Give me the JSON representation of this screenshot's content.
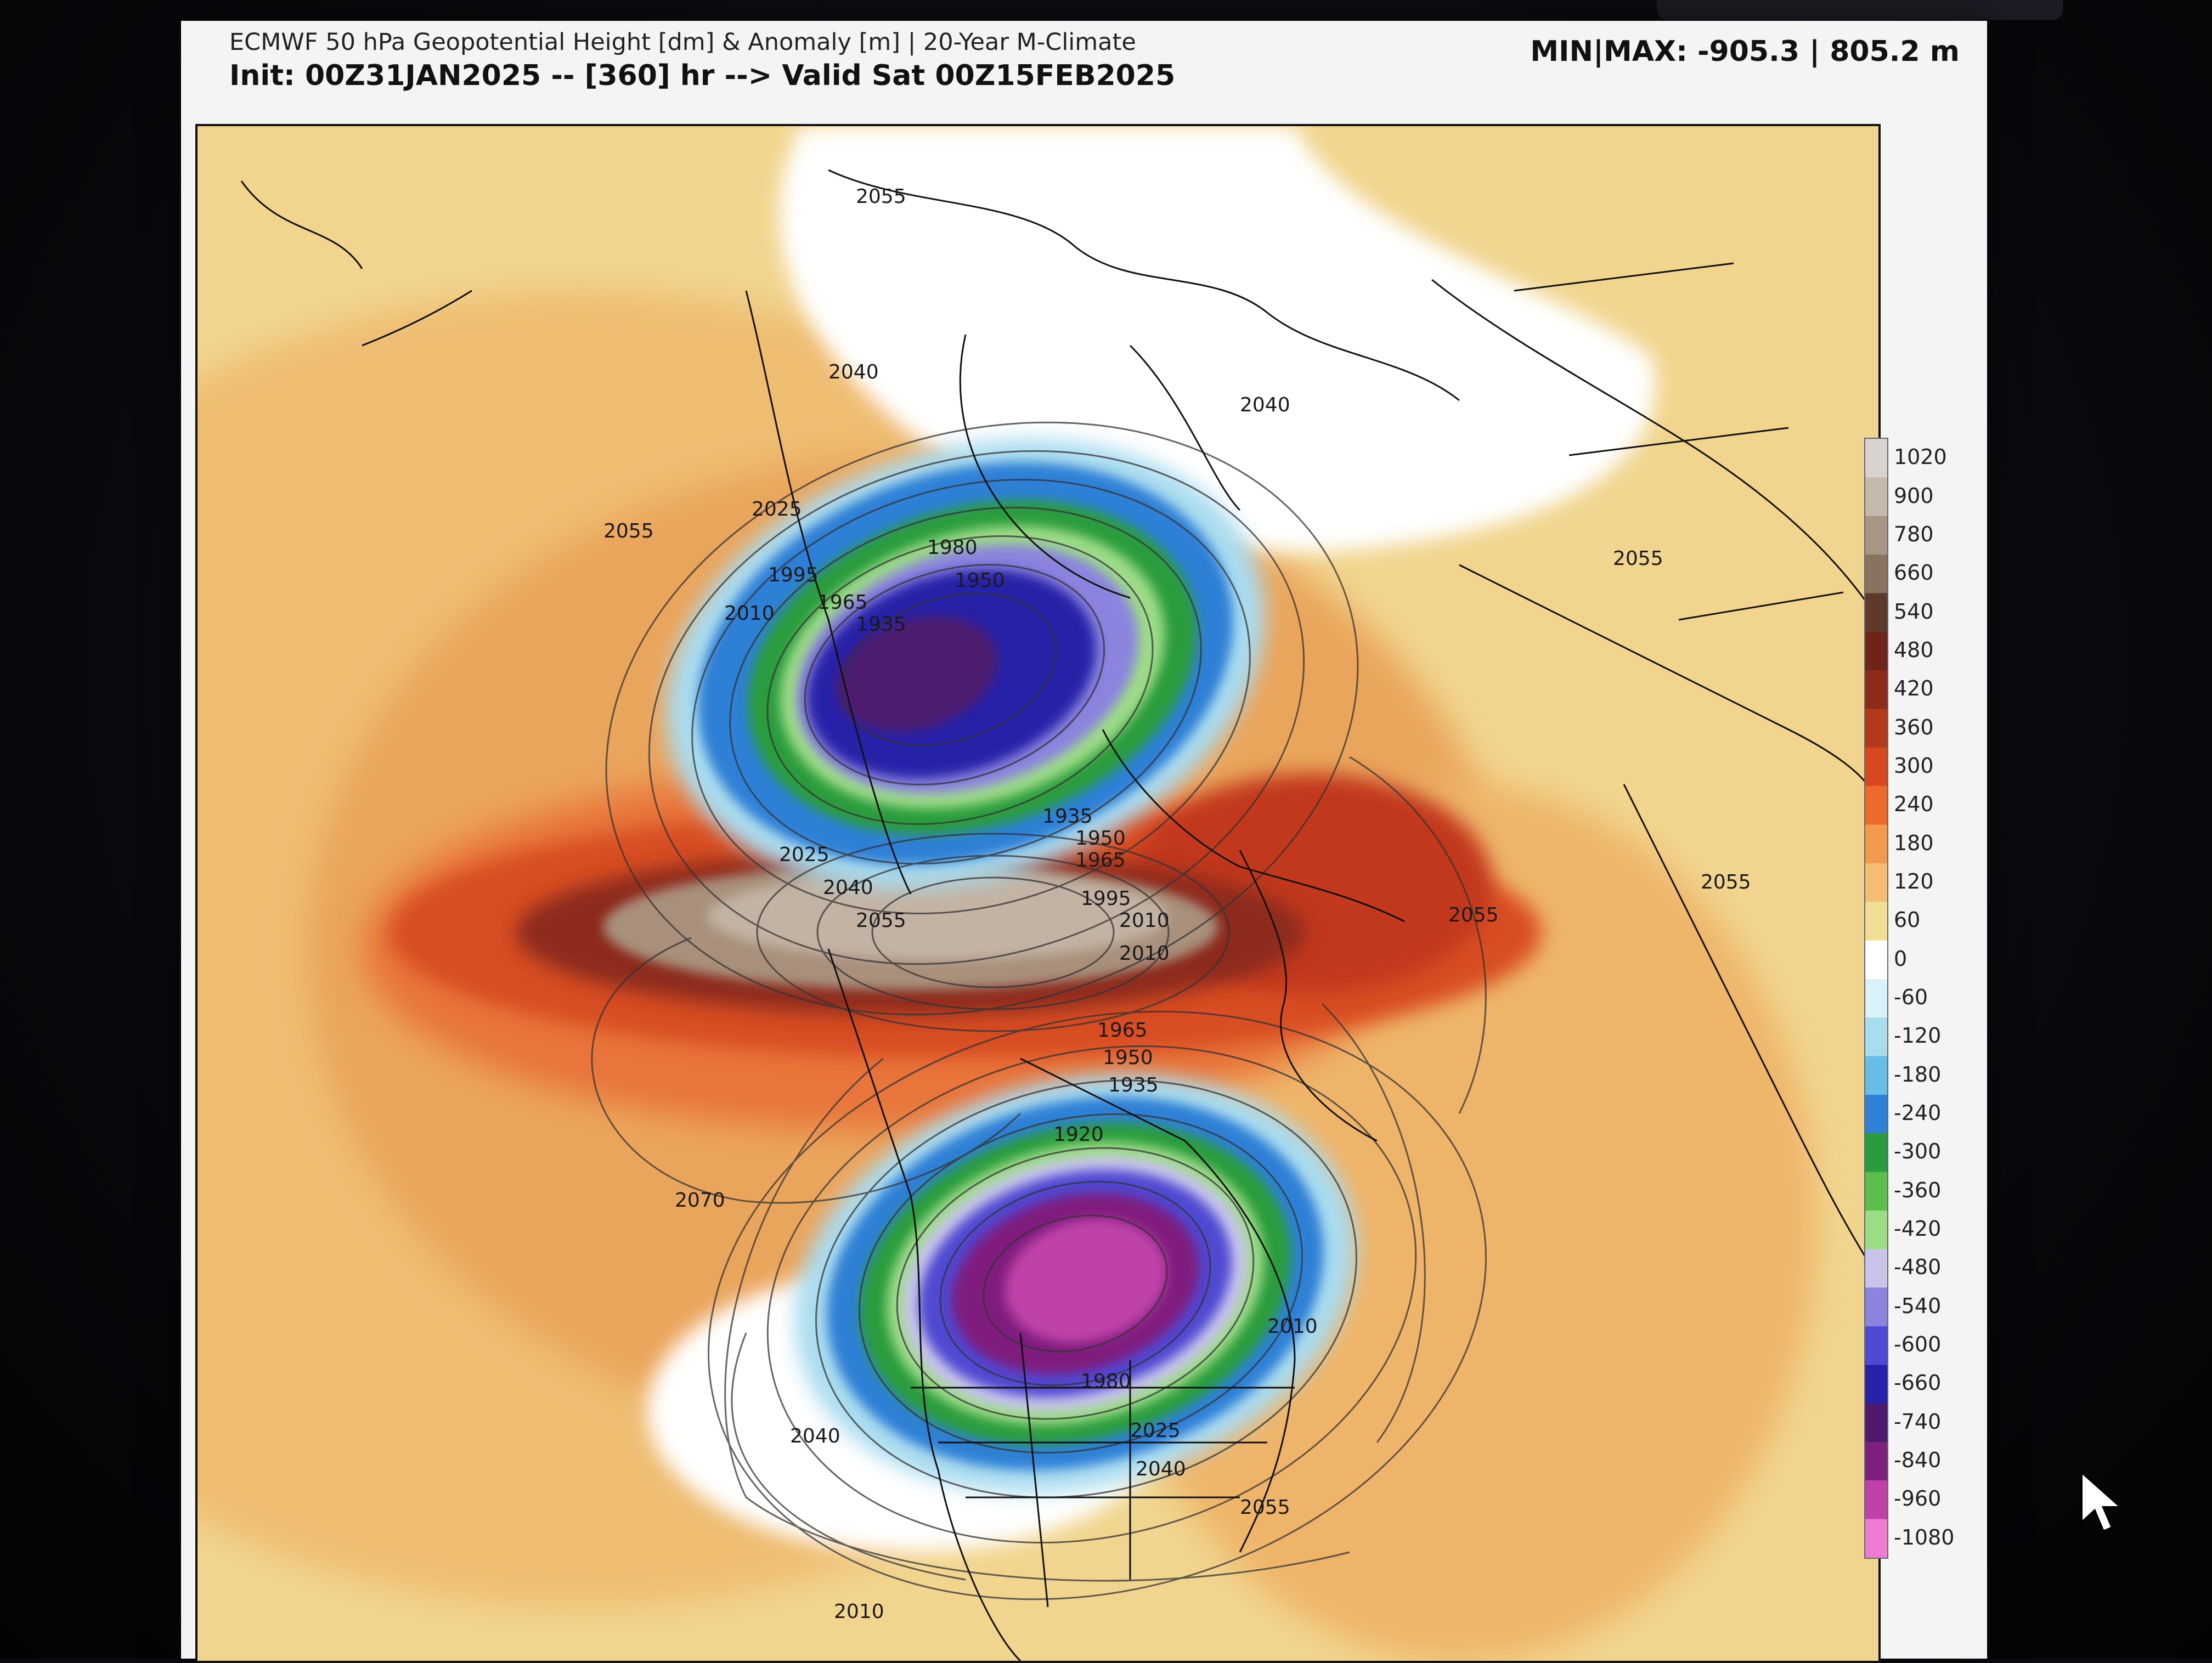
{
  "header": {
    "title": "ECMWF 50 hPa Geopotential Height [dm] & Anomaly [m] | 20-Year M-Climate",
    "init_line": "Init: 00Z31JAN2025 -- [360] hr --> Valid Sat 00Z15FEB2025",
    "minmax": "MIN|MAX: -905.3 | 805.2 m"
  },
  "colorbar": {
    "ticks": [
      "1020",
      "900",
      "780",
      "660",
      "540",
      "480",
      "420",
      "360",
      "300",
      "240",
      "180",
      "120",
      "60",
      "0",
      "-60",
      "-120",
      "-180",
      "-240",
      "-300",
      "-360",
      "-420",
      "-480",
      "-540",
      "-600",
      "-660",
      "-740",
      "-840",
      "-960",
      "-1080"
    ],
    "colors": [
      "#d6d3d0",
      "#c5b9ae",
      "#a79585",
      "#8a7261",
      "#5e3a2c",
      "#6e2418",
      "#8c2b1a",
      "#b3391d",
      "#d8491f",
      "#ed6a2d",
      "#f39a4e",
      "#f5bd73",
      "#f1dd94",
      "#ffffff",
      "#d9f1f8",
      "#a9dcef",
      "#66bde8",
      "#2f80d6",
      "#2a9c3e",
      "#5cbd4a",
      "#9ddc87",
      "#c8c4ec",
      "#8a84de",
      "#4f4ad2",
      "#2720a8",
      "#4d1a6e",
      "#7f1f7e",
      "#c042a8",
      "#ee7ad2"
    ]
  },
  "contour_labels": {
    "c_2055_a": "2055",
    "c_2040_a": "2040",
    "c_2040_b": "2040",
    "c_2025_a": "2025",
    "c_2055_b": "2055",
    "c_1980_a": "1980",
    "c_1950_a": "1950",
    "c_1965_a": "1965",
    "c_1935_a": "1935",
    "c_1995_a": "1995",
    "c_2010_a": "2010",
    "c_1935_b": "1935",
    "c_1950_b": "1950",
    "c_1965_b": "1965",
    "c_1995_b": "1995",
    "c_2025_b": "2025",
    "c_2040_c": "2040",
    "c_2055_c": "2055",
    "c_2010_b": "2010",
    "c_2010_c": "2010",
    "c_1965_c": "1965",
    "c_1950_c": "1950",
    "c_1935_c": "1935",
    "c_1920_a": "1920",
    "c_2070_a": "2070",
    "c_1980_b": "1980",
    "c_2025_c": "2025",
    "c_2040_d": "2040",
    "c_2040_e": "2040",
    "c_2055_d": "2055",
    "c_2055_e": "2055",
    "c_2055_f": "2055",
    "c_2010_d": "2010",
    "c_2055_g": "2055",
    "c_2010_e": "2010"
  },
  "icons": {
    "cursor": "mouse-pointer-icon"
  }
}
